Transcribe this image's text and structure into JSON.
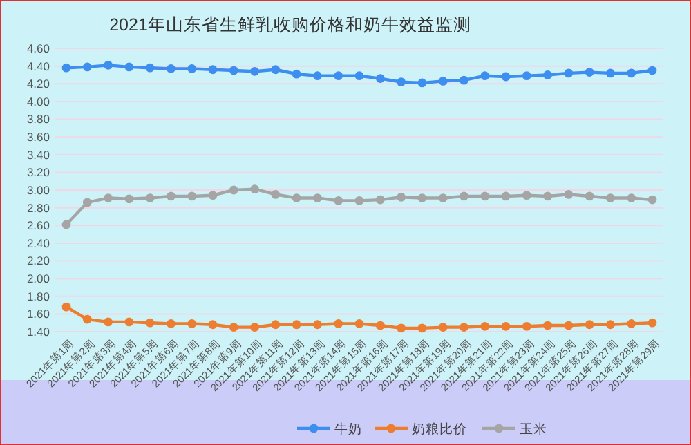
{
  "chart_data": {
    "type": "line",
    "title": "2021年山东省生鲜乳收购价格和奶牛效益监测",
    "categories": [
      "2021年第1周",
      "2021年第2周",
      "2021年第3周",
      "2021年第4周",
      "2021年第5周",
      "2021年第6周",
      "2021年第7周",
      "2021年第8周",
      "2021年第9周",
      "2021年第10周",
      "2021年第11周",
      "2021年第12周",
      "2021年第13周",
      "2021年第14周",
      "2021年第15周",
      "2021年第16周",
      "2021年第17周",
      "2021年第18周",
      "2021年第19周",
      "2021年第20周",
      "2021年第21周",
      "2021年第22周",
      "2021年第23周",
      "2021年第24周",
      "2021年第25周",
      "2021年第26周",
      "2021年第27周",
      "2021年第28周",
      "2021年第29周"
    ],
    "series": [
      {
        "name": "牛奶",
        "color": "#3d8ef0",
        "values": [
          4.38,
          4.39,
          4.41,
          4.39,
          4.38,
          4.37,
          4.37,
          4.36,
          4.35,
          4.34,
          4.36,
          4.31,
          4.29,
          4.29,
          4.29,
          4.26,
          4.22,
          4.21,
          4.23,
          4.24,
          4.29,
          4.28,
          4.29,
          4.3,
          4.32,
          4.33,
          4.32,
          4.32,
          4.35
        ]
      },
      {
        "name": "奶粮比价",
        "color": "#ed7d31",
        "values": [
          1.68,
          1.54,
          1.51,
          1.51,
          1.5,
          1.49,
          1.49,
          1.48,
          1.45,
          1.45,
          1.48,
          1.48,
          1.48,
          1.49,
          1.49,
          1.47,
          1.44,
          1.44,
          1.45,
          1.45,
          1.46,
          1.46,
          1.46,
          1.47,
          1.47,
          1.48,
          1.48,
          1.49,
          1.5
        ]
      },
      {
        "name": "玉米",
        "color": "#a5a5a5",
        "values": [
          2.61,
          2.86,
          2.91,
          2.9,
          2.91,
          2.93,
          2.93,
          2.94,
          3.0,
          3.01,
          2.95,
          2.91,
          2.91,
          2.88,
          2.88,
          2.89,
          2.92,
          2.91,
          2.91,
          2.93,
          2.93,
          2.93,
          2.94,
          2.93,
          2.95,
          2.93,
          2.91,
          2.91,
          2.89
        ]
      }
    ],
    "ylim": [
      1.4,
      4.6
    ],
    "yticks": [
      {
        "value": 1.4,
        "label": "1.40"
      },
      {
        "value": 1.6,
        "label": "1.60"
      },
      {
        "value": 1.8,
        "label": "1.80"
      },
      {
        "value": 2.0,
        "label": "2.00"
      },
      {
        "value": 2.2,
        "label": "2.20"
      },
      {
        "value": 2.4,
        "label": "2.40"
      },
      {
        "value": 2.6,
        "label": "2.60"
      },
      {
        "value": 2.8,
        "label": "2.80"
      },
      {
        "value": 3.0,
        "label": "3.00"
      },
      {
        "value": 3.2,
        "label": "3.20"
      },
      {
        "value": 3.4,
        "label": "3.40"
      },
      {
        "value": 3.6,
        "label": "3.60"
      },
      {
        "value": 3.8,
        "label": "3.80"
      },
      {
        "value": 4.0,
        "label": "4.00"
      },
      {
        "value": 4.2,
        "label": "4.20"
      },
      {
        "value": 4.4,
        "label": "4.40"
      },
      {
        "value": 4.6,
        "label": "4.60"
      }
    ],
    "grid": "y",
    "legend": "bottom",
    "marker": "circle",
    "line_style": "solid"
  }
}
